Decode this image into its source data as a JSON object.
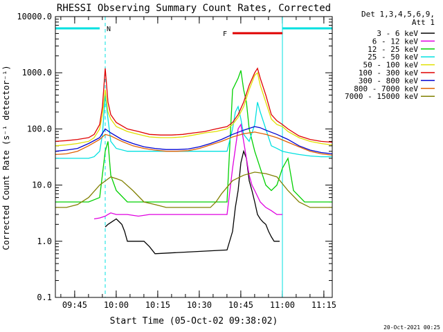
{
  "chart_data": {
    "type": "line",
    "title": "RHESSI Observing Summary Count Rates, Corrected",
    "xlabel": "Start Time (05-Oct-02 09:38:02)",
    "ylabel": "Corrected Count Rate (s⁻¹ detector⁻¹)",
    "yscale": "log",
    "ylim": [
      0.1,
      10000
    ],
    "xlim_minutes_after_0938": [
      0,
      100
    ],
    "x_ticks": [
      "09:45",
      "10:00",
      "10:15",
      "10:30",
      "10:45",
      "11:00",
      "11:15"
    ],
    "y_ticks": [
      "0.1",
      "1.0",
      "10.0",
      "100.0",
      "1000.0",
      "10000.0"
    ],
    "info_lines": [
      "Det 1,3,4,5,6,9,",
      "Att 1"
    ],
    "footer_date": "20-Oct-2021 00:25",
    "annotations": [
      {
        "label": "N",
        "color": "#00e0e0",
        "x_range": [
          0,
          18
        ],
        "kind": "night"
      },
      {
        "label": "F",
        "color": "#e00000",
        "x_range": [
          64,
          82
        ],
        "kind": "flare"
      }
    ],
    "boundaries_minutes": [
      0,
      18,
      82,
      100
    ],
    "series": [
      {
        "name": "3 - 6 keV",
        "color": "#000000",
        "x": [
          18,
          19,
          22,
          24,
          25,
          26,
          28,
          32,
          34,
          36,
          62,
          64,
          65,
          66,
          67,
          68,
          69,
          70,
          71,
          72,
          73,
          74,
          75,
          76,
          77,
          78,
          79,
          80,
          81
        ],
        "y": [
          1.8,
          2.0,
          2.5,
          2.0,
          1.5,
          1.0,
          1.0,
          1.0,
          0.8,
          0.6,
          0.7,
          1.5,
          4.0,
          8.0,
          25,
          40,
          30,
          12,
          8,
          5,
          3,
          2.5,
          2.2,
          2.0,
          1.5,
          1.2,
          1.0,
          1.0,
          1.0
        ]
      },
      {
        "name": "6 - 12 keV",
        "color": "#e000e0",
        "x": [
          14,
          16,
          18,
          19,
          20,
          22,
          26,
          30,
          34,
          38,
          42,
          46,
          50,
          54,
          58,
          62,
          64,
          66,
          67,
          68,
          70,
          71,
          72,
          74,
          76,
          78,
          80,
          82
        ],
        "y": [
          2.5,
          2.6,
          2.8,
          3.0,
          3.2,
          3.0,
          3.0,
          2.8,
          3.0,
          3.0,
          3.0,
          3.0,
          3.0,
          3.0,
          3.0,
          3.0,
          20,
          100,
          120,
          60,
          15,
          10,
          8,
          5,
          4,
          3.5,
          3.0,
          3.0
        ]
      },
      {
        "name": "12 - 25 keV",
        "color": "#00d000",
        "x": [
          0,
          4,
          8,
          12,
          16,
          18,
          19,
          20,
          22,
          26,
          30,
          34,
          38,
          42,
          46,
          50,
          54,
          58,
          62,
          64,
          66,
          67,
          68,
          69,
          70,
          72,
          74,
          76,
          78,
          80,
          82,
          84,
          86,
          90,
          94,
          98,
          100
        ],
        "y": [
          5,
          5,
          5,
          5,
          6,
          40,
          60,
          15,
          8,
          5,
          5,
          5,
          5,
          5,
          5,
          5,
          5,
          5,
          5,
          500,
          800,
          1100,
          500,
          300,
          100,
          40,
          20,
          10,
          8,
          10,
          20,
          30,
          8,
          5,
          5,
          5,
          5
        ]
      },
      {
        "name": "25 - 50 keV",
        "color": "#00e0e0",
        "x": [
          0,
          4,
          8,
          12,
          14,
          16,
          17,
          18,
          19,
          20,
          22,
          26,
          30,
          34,
          38,
          42,
          46,
          50,
          54,
          58,
          62,
          64,
          65,
          66,
          67,
          68,
          70,
          72,
          73,
          74,
          76,
          78,
          80,
          82,
          84,
          88,
          92,
          96,
          100
        ],
        "y": [
          30,
          30,
          30,
          30,
          32,
          40,
          80,
          400,
          150,
          60,
          45,
          40,
          40,
          40,
          40,
          40,
          40,
          40,
          40,
          40,
          40,
          100,
          200,
          250,
          150,
          80,
          60,
          120,
          300,
          200,
          100,
          50,
          45,
          40,
          38,
          35,
          33,
          32,
          32
        ]
      },
      {
        "name": "50 - 100 keV",
        "color": "#e0e000",
        "x": [
          0,
          4,
          8,
          12,
          14,
          16,
          17,
          18,
          19,
          20,
          22,
          26,
          30,
          34,
          38,
          42,
          46,
          50,
          54,
          58,
          62,
          64,
          66,
          68,
          70,
          72,
          73,
          74,
          76,
          78,
          80,
          82,
          84,
          88,
          92,
          96,
          100
        ],
        "y": [
          50,
          52,
          55,
          60,
          70,
          100,
          180,
          500,
          200,
          150,
          110,
          90,
          80,
          72,
          70,
          70,
          72,
          78,
          85,
          90,
          100,
          120,
          160,
          250,
          500,
          900,
          1000,
          600,
          300,
          150,
          120,
          110,
          90,
          70,
          60,
          55,
          52
        ]
      },
      {
        "name": "100 - 300 keV",
        "color": "#e00000",
        "x": [
          0,
          4,
          8,
          12,
          14,
          16,
          17,
          18,
          19,
          20,
          22,
          26,
          30,
          34,
          38,
          42,
          46,
          50,
          54,
          58,
          62,
          64,
          66,
          68,
          70,
          72,
          73,
          74,
          76,
          78,
          80,
          82,
          84,
          88,
          92,
          96,
          100
        ],
        "y": [
          60,
          62,
          65,
          70,
          80,
          120,
          250,
          1200,
          300,
          180,
          130,
          100,
          90,
          80,
          78,
          78,
          80,
          85,
          90,
          100,
          110,
          130,
          180,
          300,
          600,
          1000,
          1200,
          800,
          400,
          180,
          140,
          120,
          100,
          75,
          65,
          60,
          58
        ]
      },
      {
        "name": "300 - 800 keV",
        "color": "#0000d0",
        "x": [
          0,
          4,
          8,
          12,
          16,
          18,
          20,
          24,
          28,
          32,
          36,
          40,
          44,
          48,
          52,
          56,
          60,
          64,
          68,
          72,
          74,
          76,
          80,
          84,
          88,
          92,
          96,
          100
        ],
        "y": [
          40,
          42,
          45,
          55,
          70,
          100,
          85,
          65,
          55,
          48,
          45,
          43,
          43,
          44,
          48,
          55,
          65,
          80,
          95,
          110,
          105,
          95,
          80,
          65,
          50,
          42,
          38,
          36
        ]
      },
      {
        "name": "800 - 7000 keV",
        "color": "#e06000",
        "x": [
          0,
          4,
          8,
          12,
          16,
          18,
          20,
          24,
          28,
          32,
          36,
          40,
          44,
          48,
          52,
          56,
          60,
          64,
          68,
          72,
          76,
          80,
          84,
          88,
          92,
          96,
          100
        ],
        "y": [
          35,
          36,
          40,
          50,
          65,
          80,
          75,
          60,
          50,
          45,
          42,
          40,
          40,
          41,
          45,
          52,
          60,
          72,
          82,
          88,
          80,
          70,
          58,
          48,
          40,
          36,
          34
        ]
      },
      {
        "name": "7000 - 15000 keV",
        "color": "#808000",
        "x": [
          0,
          4,
          8,
          12,
          16,
          20,
          22,
          24,
          28,
          32,
          36,
          40,
          44,
          48,
          52,
          56,
          58,
          60,
          64,
          68,
          72,
          76,
          80,
          84,
          88,
          92,
          96,
          100
        ],
        "y": [
          4,
          4,
          4.5,
          6,
          10,
          14,
          13,
          12,
          8,
          5,
          4.5,
          4,
          4,
          4,
          4,
          4,
          5,
          7,
          12,
          15,
          17,
          16,
          14,
          8,
          5,
          4,
          4,
          4
        ]
      }
    ]
  }
}
